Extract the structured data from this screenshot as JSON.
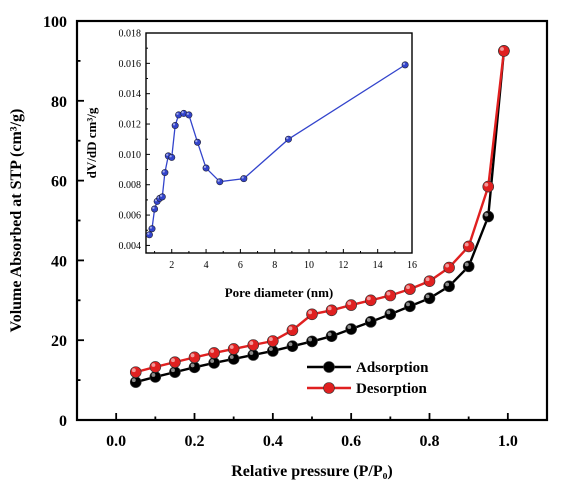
{
  "chart_data": [
    {
      "type": "line",
      "xlabel": "Relative pressure (P/P₀)",
      "ylabel": "Volume Absorbed at STP (cm³/g)",
      "xlim": [
        -0.1,
        1.1
      ],
      "ylim": [
        0,
        100
      ],
      "xticks": [
        "0.0",
        "0.2",
        "0.4",
        "0.6",
        "0.8",
        "1.0"
      ],
      "yticks": [
        "0",
        "20",
        "40",
        "60",
        "80",
        "100"
      ],
      "legend_position": "lower-right",
      "series": [
        {
          "name": "Adsorption",
          "color": "#000000",
          "x": [
            0.05,
            0.1,
            0.15,
            0.2,
            0.25,
            0.3,
            0.35,
            0.4,
            0.45,
            0.5,
            0.55,
            0.6,
            0.65,
            0.7,
            0.75,
            0.8,
            0.85,
            0.9,
            0.95,
            0.99
          ],
          "y": [
            9.5,
            10.8,
            12.0,
            13.2,
            14.3,
            15.3,
            16.3,
            17.3,
            18.5,
            19.7,
            21.0,
            22.8,
            24.6,
            26.5,
            28.5,
            30.5,
            33.5,
            38.5,
            51.0,
            92.5
          ]
        },
        {
          "name": "Desorption",
          "color": "#e02020",
          "x": [
            0.05,
            0.1,
            0.15,
            0.2,
            0.25,
            0.3,
            0.35,
            0.4,
            0.45,
            0.5,
            0.55,
            0.6,
            0.65,
            0.7,
            0.75,
            0.8,
            0.85,
            0.9,
            0.95,
            0.99
          ],
          "y": [
            12.0,
            13.3,
            14.5,
            15.7,
            16.8,
            17.8,
            18.8,
            19.8,
            22.5,
            26.5,
            27.5,
            28.8,
            30.0,
            31.2,
            32.8,
            34.8,
            38.2,
            43.5,
            58.5,
            92.5
          ]
        }
      ]
    },
    {
      "type": "line",
      "position": "inset",
      "xlabel": "Pore diameter (nm)",
      "ylabel": "dV/dD cm³/g",
      "xlim": [
        0.5,
        16
      ],
      "ylim": [
        0.0035,
        0.018
      ],
      "xticks": [
        "2",
        "4",
        "6",
        "8",
        "10",
        "12",
        "14",
        "16"
      ],
      "yticks": [
        "0.004",
        "0.006",
        "0.008",
        "0.010",
        "0.012",
        "0.014",
        "0.016",
        "0.018"
      ],
      "series": [
        {
          "color": "#3344cc",
          "x": [
            0.7,
            0.85,
            1.0,
            1.15,
            1.3,
            1.45,
            1.6,
            1.8,
            2.0,
            2.2,
            2.4,
            2.7,
            3.0,
            3.5,
            4.0,
            4.8,
            6.2,
            8.8,
            15.6
          ],
          "y": [
            0.0047,
            0.0051,
            0.0064,
            0.0069,
            0.0071,
            0.0072,
            0.0088,
            0.0099,
            0.0098,
            0.0119,
            0.0126,
            0.0127,
            0.0126,
            0.0108,
            0.0091,
            0.0082,
            0.0084,
            0.011,
            0.0159
          ]
        }
      ]
    }
  ]
}
